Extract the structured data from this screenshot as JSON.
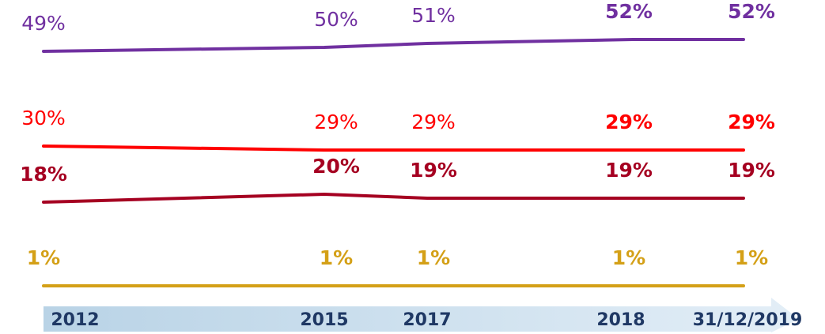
{
  "chart_data": {
    "type": "line",
    "categories": [
      "2012",
      "2015",
      "2017",
      "2018",
      "31/12/2019"
    ],
    "series": [
      {
        "color": "#7030a0",
        "values": [
          49,
          50,
          51,
          52,
          52
        ],
        "value_labels": [
          "49%",
          "50%",
          "51%",
          "52%",
          "52%"
        ]
      },
      {
        "color": "#ff0000",
        "values": [
          30,
          29,
          29,
          29,
          29
        ],
        "value_labels": [
          "30%",
          "29%",
          "29%",
          "29%",
          "29%"
        ]
      },
      {
        "color": "#a50021",
        "values": [
          18,
          20,
          19,
          19,
          19
        ],
        "value_labels": [
          "18%",
          "20%",
          "19%",
          "19%",
          "19%"
        ]
      },
      {
        "color": "#d4a017",
        "values": [
          1,
          1,
          1,
          1,
          1
        ],
        "value_labels": [
          "1%",
          "1%",
          "1%",
          "1%",
          "1%"
        ]
      }
    ]
  }
}
